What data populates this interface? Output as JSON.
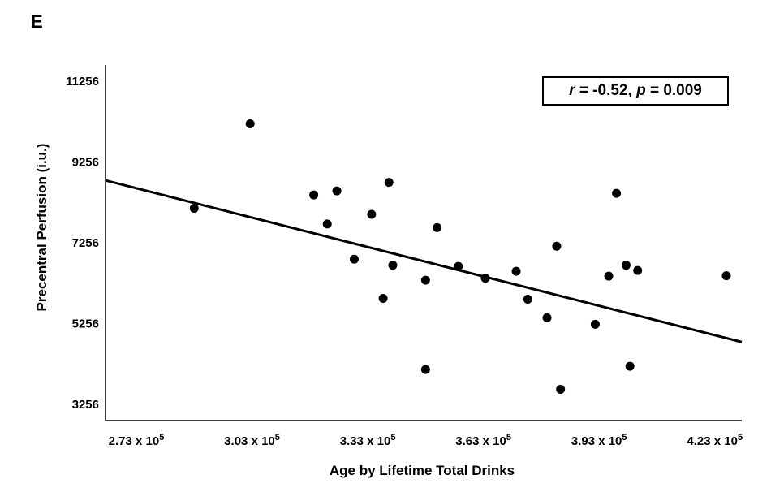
{
  "panel_label": "E",
  "chart_data": {
    "type": "scatter",
    "title": "",
    "xlabel": "Age by Lifetime Total Drinks",
    "ylabel": "Precentral Perfusion (i.u.)",
    "annotation": {
      "r_label": "r",
      "r_value": "= -0.52,",
      "p_label": "p",
      "p_value": "= 0.009"
    },
    "xlim": [
      265000,
      430000
    ],
    "ylim": [
      2856,
      11656
    ],
    "x_ticks": [
      {
        "base": "2.73 x 10",
        "exp": "5",
        "value": 273000
      },
      {
        "base": "3.03 x 10",
        "exp": "5",
        "value": 303000
      },
      {
        "base": "3.33 x 10",
        "exp": "5",
        "value": 333000
      },
      {
        "base": "3.63 x 10",
        "exp": "5",
        "value": 363000
      },
      {
        "base": "3.93 x 10",
        "exp": "5",
        "value": 393000
      },
      {
        "base": "4.23 x 10",
        "exp": "5",
        "value": 423000
      }
    ],
    "y_ticks": [
      "11256",
      "9256",
      "7256",
      "5256",
      "3256"
    ],
    "y_tick_values": [
      11256,
      9256,
      7256,
      5256,
      3256
    ],
    "points": [
      {
        "x": 288000,
        "y": 8110
      },
      {
        "x": 302500,
        "y": 10200
      },
      {
        "x": 319000,
        "y": 8440
      },
      {
        "x": 322500,
        "y": 7720
      },
      {
        "x": 325000,
        "y": 8540
      },
      {
        "x": 329500,
        "y": 6850
      },
      {
        "x": 334000,
        "y": 7960
      },
      {
        "x": 337000,
        "y": 5880
      },
      {
        "x": 338500,
        "y": 8750
      },
      {
        "x": 339500,
        "y": 6700
      },
      {
        "x": 348000,
        "y": 6330
      },
      {
        "x": 348000,
        "y": 4120
      },
      {
        "x": 351000,
        "y": 7630
      },
      {
        "x": 356500,
        "y": 6670
      },
      {
        "x": 363500,
        "y": 6380
      },
      {
        "x": 371500,
        "y": 6550
      },
      {
        "x": 374500,
        "y": 5860
      },
      {
        "x": 379500,
        "y": 5400
      },
      {
        "x": 382000,
        "y": 7170
      },
      {
        "x": 383000,
        "y": 3630
      },
      {
        "x": 392000,
        "y": 5240
      },
      {
        "x": 395500,
        "y": 6430
      },
      {
        "x": 397500,
        "y": 8480
      },
      {
        "x": 400000,
        "y": 6700
      },
      {
        "x": 401000,
        "y": 4200
      },
      {
        "x": 403000,
        "y": 6570
      },
      {
        "x": 426000,
        "y": 6440
      }
    ],
    "regression_line": {
      "x": [
        265000,
        432000
      ],
      "y": [
        8800,
        4800
      ]
    },
    "grid": false,
    "legend": "none"
  }
}
